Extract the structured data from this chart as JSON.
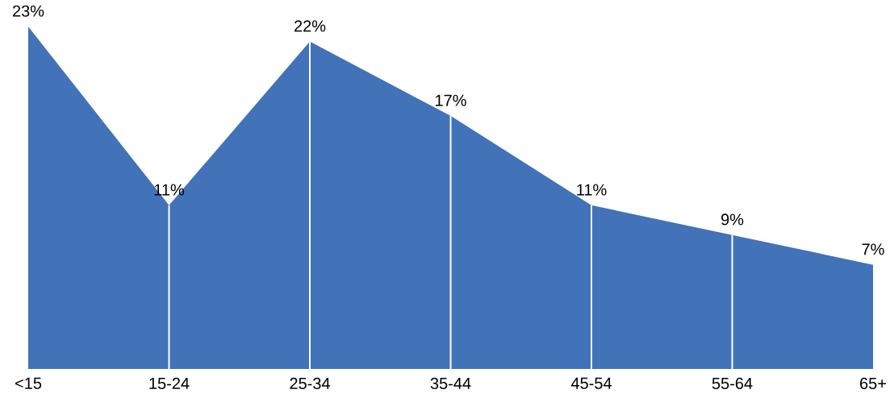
{
  "chart_data": {
    "type": "area",
    "categories": [
      "<15",
      "15-24",
      "25-34",
      "35-44",
      "45-54",
      "55-64",
      "65+"
    ],
    "values": [
      23,
      11,
      22,
      17,
      11,
      9,
      7
    ],
    "value_labels": [
      "23%",
      "11%",
      "22%",
      "17%",
      "11%",
      "9%",
      "7%"
    ],
    "color": "#4272b8"
  }
}
